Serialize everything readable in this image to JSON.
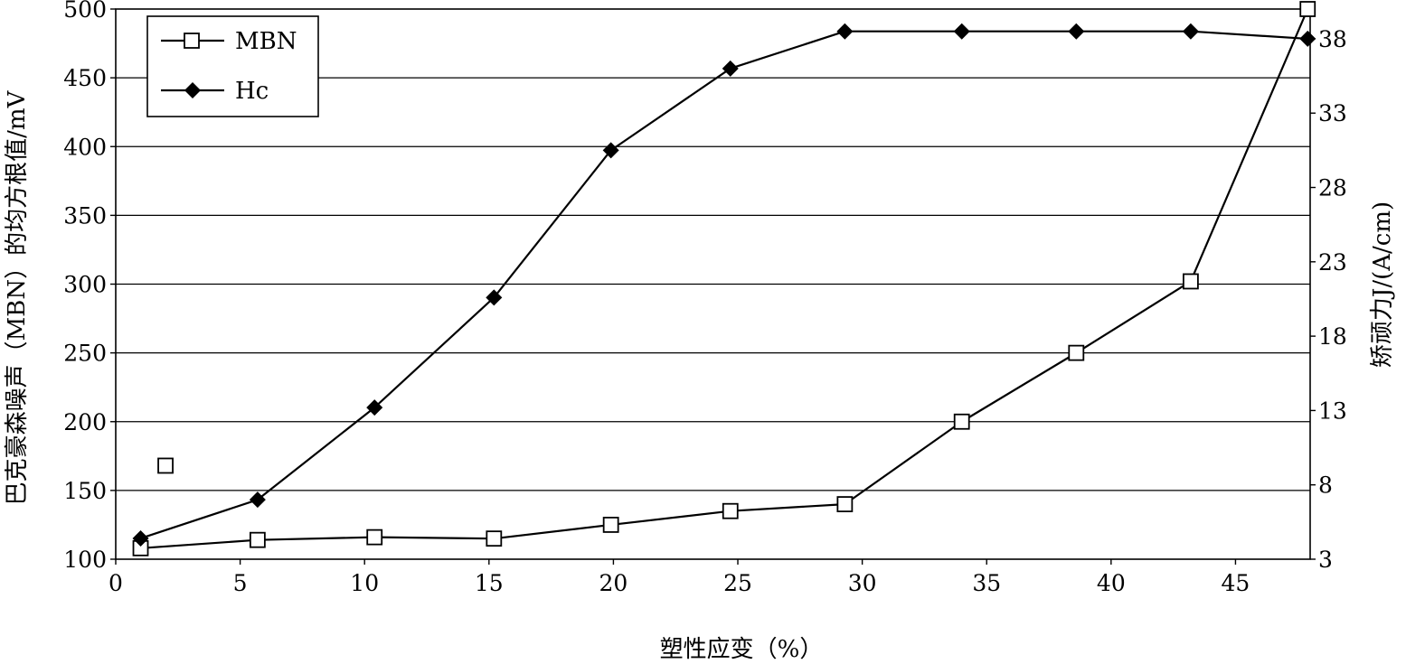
{
  "chart_data": {
    "type": "line",
    "xlabel": "塑性应变（%）",
    "ylabel": "巴克豪森噪声（MBN）的均方根值/mV",
    "y2label": "矫顽力J/(A/cm)",
    "xlim": [
      0,
      48
    ],
    "ylim": [
      100,
      500
    ],
    "y2lim": [
      3,
      40
    ],
    "xticks": [
      0,
      5,
      10,
      15,
      20,
      25,
      30,
      35,
      40,
      45
    ],
    "xtick_labels": [
      "0",
      "5",
      "10",
      "15",
      "20",
      "25",
      "30",
      "35",
      "40",
      "45"
    ],
    "yticks": [
      100,
      150,
      200,
      250,
      300,
      350,
      400,
      450,
      500
    ],
    "ytick_labels": [
      "100",
      "150",
      "200",
      "250",
      "300",
      "350",
      "400",
      "450",
      "500"
    ],
    "y2ticks": [
      3,
      8,
      13,
      18,
      23,
      28,
      33,
      38
    ],
    "y2tick_labels": [
      "3",
      "8",
      "13",
      "18",
      "23",
      "28",
      "33",
      "38"
    ],
    "grid": "horizontal",
    "legend_position": "top-left",
    "series": [
      {
        "name": "MBN",
        "axis": "left",
        "marker": "open-square",
        "x": [
          1,
          5.7,
          10.4,
          15.2,
          19.9,
          24.7,
          29.3,
          34,
          38.6,
          43.2,
          47.9
        ],
        "y": [
          108,
          114,
          116,
          115,
          125,
          135,
          140,
          200,
          250,
          302,
          500
        ]
      },
      {
        "name": "Hc",
        "axis": "right",
        "marker": "filled-diamond",
        "x": [
          1,
          5.7,
          10.4,
          15.2,
          19.9,
          24.7,
          29.3,
          34,
          38.6,
          43.2,
          47.9
        ],
        "y": [
          4.4,
          7.0,
          13.2,
          20.6,
          30.5,
          36.0,
          38.5,
          38.5,
          38.5,
          38.5,
          38.0
        ]
      }
    ],
    "stray_points": [
      {
        "axis": "left",
        "marker": "open-square",
        "x": 2,
        "y": 168
      }
    ]
  }
}
